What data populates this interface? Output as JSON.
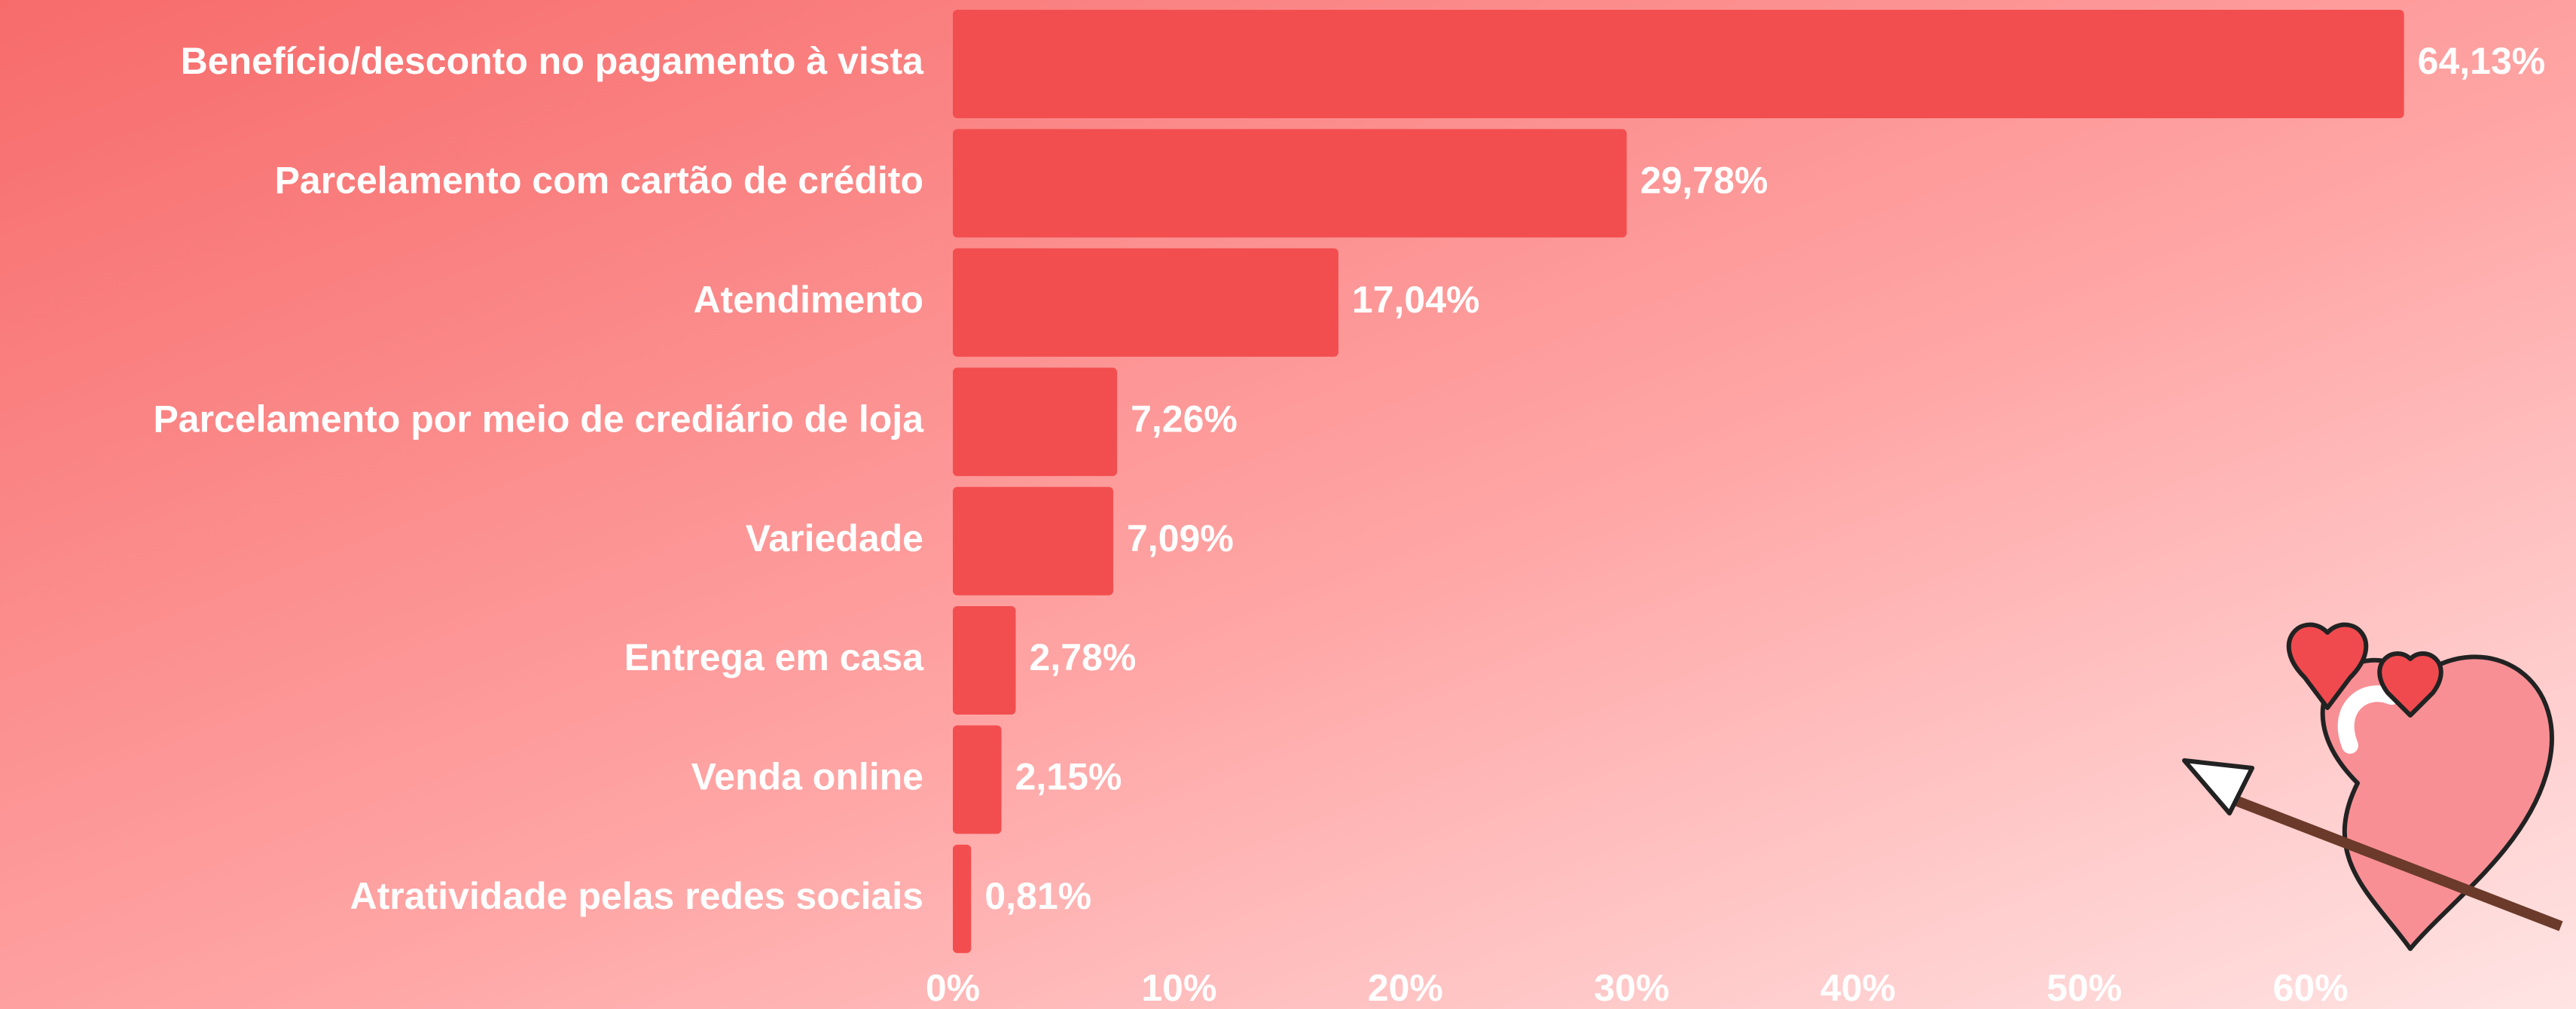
{
  "chart_data": {
    "type": "barh",
    "categories": [
      "Benefício/desconto no pagamento à vista",
      "Parcelamento com cartão de crédito",
      "Atendimento",
      "Parcelamento por meio de crediário de loja",
      "Variedade",
      "Entrega em casa",
      "Venda online",
      "Atratividade pelas redes sociais"
    ],
    "values": [
      64.13,
      29.78,
      17.04,
      7.26,
      7.09,
      2.78,
      2.15,
      0.81
    ],
    "value_labels": [
      "64,13%",
      "29,78%",
      "17,04%",
      "7,26%",
      "7,09%",
      "2,78%",
      "2,15%",
      "0,81%"
    ],
    "color": "#f24e4f",
    "xlim": [
      0,
      70
    ],
    "xticks": [
      {
        "value": 0,
        "label": "0%"
      },
      {
        "value": 10,
        "label": "10%"
      },
      {
        "value": 20,
        "label": "20%"
      },
      {
        "value": 30,
        "label": "30%"
      },
      {
        "value": 40,
        "label": "40%"
      },
      {
        "value": 50,
        "label": "50%"
      },
      {
        "value": 60,
        "label": "60%"
      }
    ],
    "grid": false
  }
}
